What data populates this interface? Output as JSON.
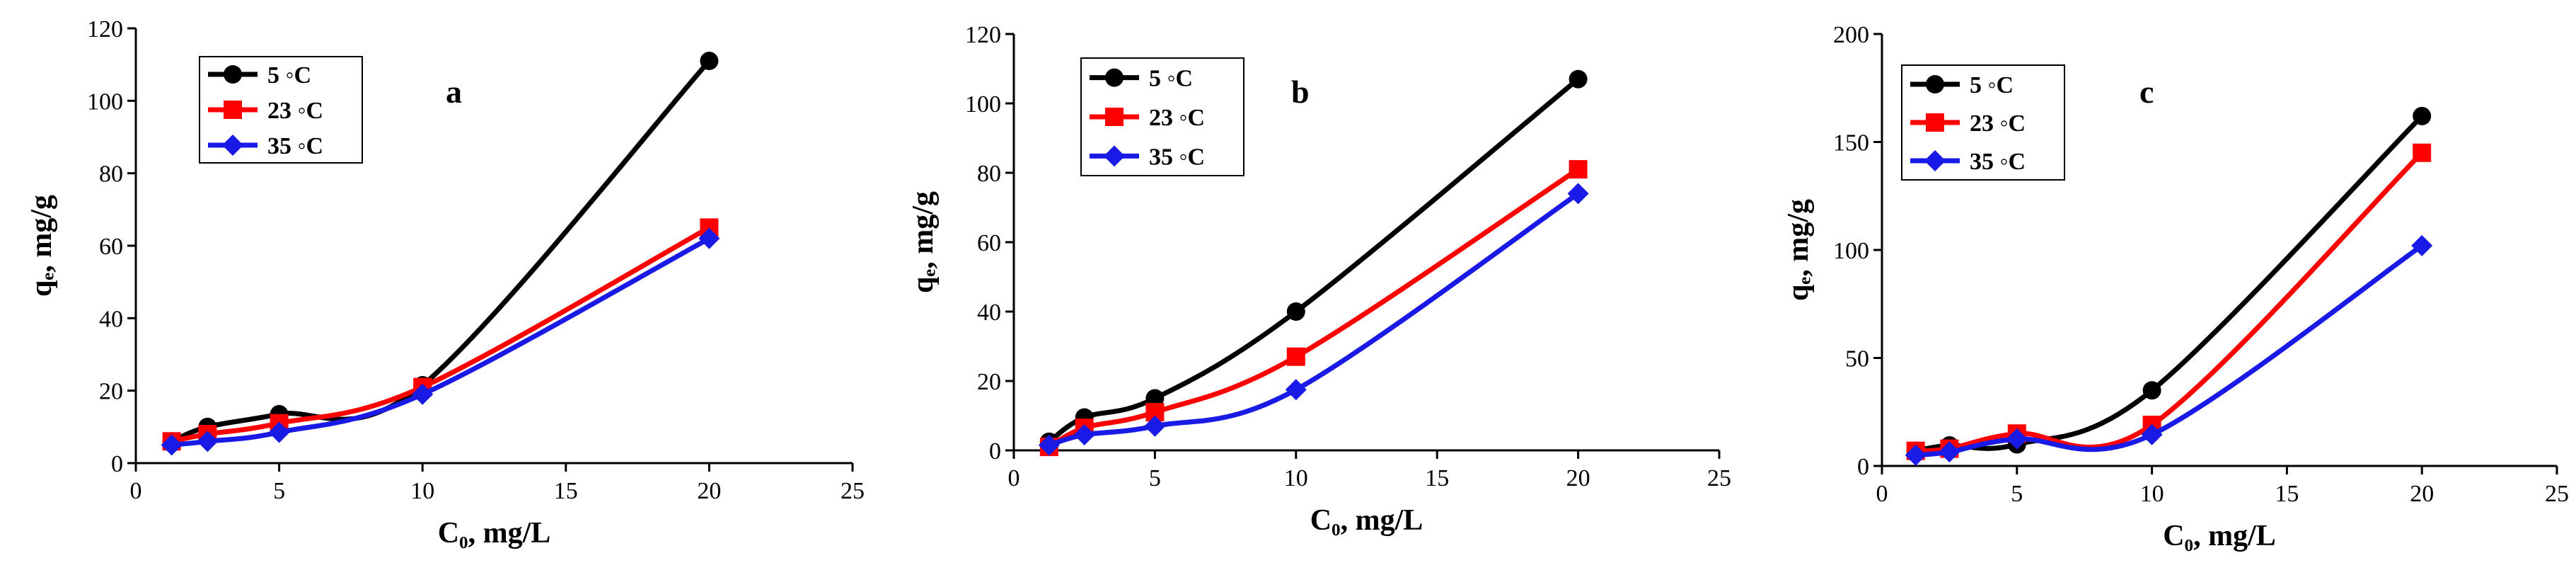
{
  "chart_data": [
    {
      "type": "line",
      "panel_label": "a",
      "xlabel": "C₀, mg/L",
      "ylabel": "qₑ, mg/g",
      "xlim": [
        0,
        25
      ],
      "ylim": [
        0,
        120
      ],
      "x_ticks": [
        0,
        5,
        10,
        15,
        20,
        25
      ],
      "y_ticks": [
        0,
        20,
        40,
        60,
        80,
        100,
        120
      ],
      "x": [
        1.25,
        2.5,
        5,
        10,
        20
      ],
      "series": [
        {
          "name": "5 °C",
          "label": "5 ◦C",
          "color": "#000000",
          "marker": "circle",
          "values": [
            6,
            10,
            13.5,
            21.5,
            111
          ]
        },
        {
          "name": "23 °C",
          "label": "23 ◦C",
          "color": "#ff0000",
          "marker": "square",
          "values": [
            6,
            8,
            11,
            21,
            65
          ]
        },
        {
          "name": "35 °C",
          "label": "35 ◦C",
          "color": "#1a1ae6",
          "marker": "diamond",
          "values": [
            5,
            6,
            8.5,
            19,
            62
          ]
        }
      ]
    },
    {
      "type": "line",
      "panel_label": "b",
      "xlabel": "C₀, mg/L",
      "ylabel": "qₑ, mg/g",
      "xlim": [
        0,
        25
      ],
      "ylim": [
        0,
        120
      ],
      "x_ticks": [
        0,
        5,
        10,
        15,
        20,
        25
      ],
      "y_ticks": [
        0,
        20,
        40,
        60,
        80,
        100,
        120
      ],
      "x": [
        1.25,
        2.5,
        5,
        10,
        20
      ],
      "series": [
        {
          "name": "5 °C",
          "label": "5 ◦C",
          "color": "#000000",
          "marker": "circle",
          "values": [
            2.5,
            9.5,
            15,
            40,
            107
          ]
        },
        {
          "name": "23 °C",
          "label": "23 ◦C",
          "color": "#ff0000",
          "marker": "square",
          "values": [
            1,
            6.5,
            11,
            27,
            81
          ]
        },
        {
          "name": "35 °C",
          "label": "35 ◦C",
          "color": "#1a1ae6",
          "marker": "diamond",
          "values": [
            1.5,
            4.5,
            7,
            17.5,
            74
          ]
        }
      ]
    },
    {
      "type": "line",
      "panel_label": "c",
      "xlabel": "C₀,  mg/L",
      "ylabel": "qₑ, mg/g",
      "xlim": [
        0,
        25
      ],
      "ylim": [
        0,
        200
      ],
      "x_ticks": [
        0,
        5,
        10,
        15,
        20,
        25
      ],
      "y_ticks": [
        0,
        50,
        100,
        150,
        200
      ],
      "x": [
        1.25,
        2.5,
        5,
        10,
        20
      ],
      "series": [
        {
          "name": "5 °C",
          "label": "5 ◦C",
          "color": "#000000",
          "marker": "circle",
          "values": [
            7,
            9.5,
            10,
            35,
            162
          ]
        },
        {
          "name": "23 °C",
          "label": "23 ◦C",
          "color": "#ff0000",
          "marker": "square",
          "values": [
            7,
            8,
            15,
            19,
            145
          ]
        },
        {
          "name": "35 °C",
          "label": "35 ◦C",
          "color": "#1a1ae6",
          "marker": "diamond",
          "values": [
            5,
            6.5,
            12.5,
            14.5,
            102
          ]
        }
      ]
    }
  ]
}
